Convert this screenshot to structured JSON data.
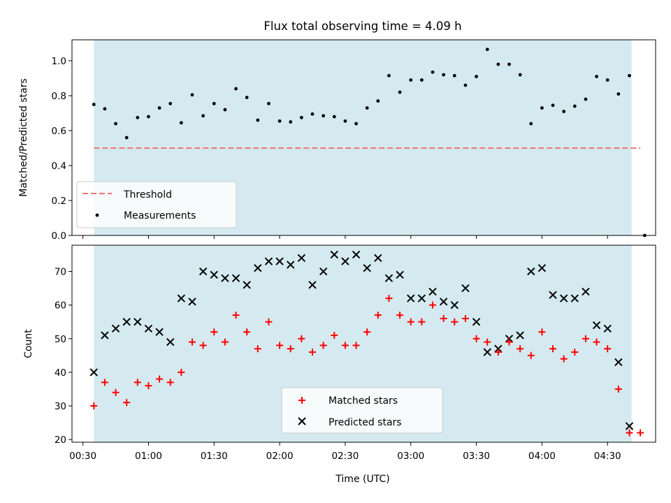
{
  "chart_data": {
    "title": "Flux total observing time = 4.09 h",
    "xlabel": "Time (UTC)",
    "xaxis": {
      "unit": "minutes after 00:00 UTC",
      "range": [
        "00:25",
        "04:52"
      ],
      "tick_labels": [
        "00:30",
        "01:00",
        "01:30",
        "02:00",
        "02:30",
        "03:00",
        "03:30",
        "04:00",
        "04:30"
      ]
    },
    "observing_window": {
      "start": "00:35",
      "end": "04:41",
      "color": "#d4eaf0"
    },
    "panels": [
      {
        "name": "ratio",
        "type": "scatter",
        "ylabel": "Matched/Predicted stars",
        "ylim": [
          0.0,
          1.12
        ],
        "y_ticks": [
          "0.0",
          "0.2",
          "0.4",
          "0.6",
          "0.8",
          "1.0"
        ],
        "legend": {
          "placement": "lower-left",
          "entries": [
            "Threshold",
            "Measurements"
          ]
        },
        "threshold": {
          "label": "Threshold",
          "value": 0.5,
          "color": "#f47575",
          "style": "dashed",
          "from": "00:35",
          "to": "04:45"
        },
        "series": [
          {
            "name": "Measurements",
            "marker": "dot",
            "color": "#000000",
            "points": [
              [
                "00:35",
                0.75
              ],
              [
                "00:40",
                0.725
              ],
              [
                "00:45",
                0.64
              ],
              [
                "00:50",
                0.56
              ],
              [
                "00:55",
                0.675
              ],
              [
                "01:00",
                0.68
              ],
              [
                "01:05",
                0.73
              ],
              [
                "01:10",
                0.755
              ],
              [
                "01:15",
                0.645
              ],
              [
                "01:20",
                0.805
              ],
              [
                "01:25",
                0.685
              ],
              [
                "01:30",
                0.755
              ],
              [
                "01:35",
                0.72
              ],
              [
                "01:40",
                0.84
              ],
              [
                "01:45",
                0.79
              ],
              [
                "01:50",
                0.66
              ],
              [
                "01:55",
                0.755
              ],
              [
                "02:00",
                0.655
              ],
              [
                "02:05",
                0.65
              ],
              [
                "02:10",
                0.675
              ],
              [
                "02:15",
                0.695
              ],
              [
                "02:20",
                0.685
              ],
              [
                "02:25",
                0.68
              ],
              [
                "02:30",
                0.655
              ],
              [
                "02:35",
                0.64
              ],
              [
                "02:40",
                0.73
              ],
              [
                "02:45",
                0.77
              ],
              [
                "02:50",
                0.915
              ],
              [
                "02:55",
                0.82
              ],
              [
                "03:00",
                0.89
              ],
              [
                "03:05",
                0.89
              ],
              [
                "03:10",
                0.935
              ],
              [
                "03:15",
                0.92
              ],
              [
                "03:20",
                0.915
              ],
              [
                "03:25",
                0.86
              ],
              [
                "03:30",
                0.91
              ],
              [
                "03:35",
                1.065
              ],
              [
                "03:40",
                0.98
              ],
              [
                "03:45",
                0.98
              ],
              [
                "03:50",
                0.92
              ],
              [
                "03:55",
                0.64
              ],
              [
                "04:00",
                0.73
              ],
              [
                "04:05",
                0.745
              ],
              [
                "04:10",
                0.71
              ],
              [
                "04:15",
                0.74
              ],
              [
                "04:20",
                0.78
              ],
              [
                "04:25",
                0.91
              ],
              [
                "04:30",
                0.89
              ],
              [
                "04:35",
                0.81
              ],
              [
                "04:40",
                0.915
              ],
              [
                "04:47",
                0.0
              ]
            ]
          }
        ]
      },
      {
        "name": "counts",
        "type": "scatter",
        "ylabel": "Count",
        "ylim": [
          19.2,
          77.8
        ],
        "y_ticks": [
          "20",
          "30",
          "40",
          "50",
          "60",
          "70"
        ],
        "legend": {
          "placement": "lower-center",
          "entries": [
            "Matched stars",
            "Predicted stars"
          ]
        },
        "series": [
          {
            "name": "Matched stars",
            "marker": "plus",
            "color": "#ff0000",
            "points": [
              [
                "00:35",
                30
              ],
              [
                "00:40",
                37
              ],
              [
                "00:45",
                34
              ],
              [
                "00:50",
                31
              ],
              [
                "00:55",
                37
              ],
              [
                "01:00",
                36
              ],
              [
                "01:05",
                38
              ],
              [
                "01:10",
                37
              ],
              [
                "01:15",
                40
              ],
              [
                "01:20",
                49
              ],
              [
                "01:25",
                48
              ],
              [
                "01:30",
                52
              ],
              [
                "01:35",
                49
              ],
              [
                "01:40",
                57
              ],
              [
                "01:45",
                52
              ],
              [
                "01:50",
                47
              ],
              [
                "01:55",
                55
              ],
              [
                "02:00",
                48
              ],
              [
                "02:05",
                47
              ],
              [
                "02:10",
                50
              ],
              [
                "02:15",
                46
              ],
              [
                "02:20",
                48
              ],
              [
                "02:25",
                51
              ],
              [
                "02:30",
                48
              ],
              [
                "02:35",
                48
              ],
              [
                "02:40",
                52
              ],
              [
                "02:45",
                57
              ],
              [
                "02:50",
                62
              ],
              [
                "02:55",
                57
              ],
              [
                "03:00",
                55
              ],
              [
                "03:05",
                55
              ],
              [
                "03:10",
                60
              ],
              [
                "03:15",
                56
              ],
              [
                "03:20",
                55
              ],
              [
                "03:25",
                56
              ],
              [
                "03:30",
                50
              ],
              [
                "03:35",
                49
              ],
              [
                "03:40",
                46
              ],
              [
                "03:45",
                49
              ],
              [
                "03:50",
                47
              ],
              [
                "03:55",
                45
              ],
              [
                "04:00",
                52
              ],
              [
                "04:05",
                47
              ],
              [
                "04:10",
                44
              ],
              [
                "04:15",
                46
              ],
              [
                "04:20",
                50
              ],
              [
                "04:25",
                49
              ],
              [
                "04:30",
                47
              ],
              [
                "04:35",
                35
              ],
              [
                "04:40",
                22
              ],
              [
                "04:45",
                22
              ]
            ]
          },
          {
            "name": "Predicted stars",
            "marker": "x",
            "color": "#000000",
            "points": [
              [
                "00:35",
                40
              ],
              [
                "00:40",
                51
              ],
              [
                "00:45",
                53
              ],
              [
                "00:50",
                55
              ],
              [
                "00:55",
                55
              ],
              [
                "01:00",
                53
              ],
              [
                "01:05",
                52
              ],
              [
                "01:10",
                49
              ],
              [
                "01:15",
                62
              ],
              [
                "01:20",
                61
              ],
              [
                "01:25",
                70
              ],
              [
                "01:30",
                69
              ],
              [
                "01:35",
                68
              ],
              [
                "01:40",
                68
              ],
              [
                "01:45",
                66
              ],
              [
                "01:50",
                71
              ],
              [
                "01:55",
                73
              ],
              [
                "02:00",
                73
              ],
              [
                "02:05",
                72
              ],
              [
                "02:10",
                74
              ],
              [
                "02:15",
                66
              ],
              [
                "02:20",
                70
              ],
              [
                "02:25",
                75
              ],
              [
                "02:30",
                73
              ],
              [
                "02:35",
                75
              ],
              [
                "02:40",
                71
              ],
              [
                "02:45",
                74
              ],
              [
                "02:50",
                68
              ],
              [
                "02:55",
                69
              ],
              [
                "03:00",
                62
              ],
              [
                "03:05",
                62
              ],
              [
                "03:10",
                64
              ],
              [
                "03:15",
                61
              ],
              [
                "03:20",
                60
              ],
              [
                "03:25",
                65
              ],
              [
                "03:30",
                55
              ],
              [
                "03:35",
                46
              ],
              [
                "03:40",
                47
              ],
              [
                "03:45",
                50
              ],
              [
                "03:50",
                51
              ],
              [
                "03:55",
                70
              ],
              [
                "04:00",
                71
              ],
              [
                "04:05",
                63
              ],
              [
                "04:10",
                62
              ],
              [
                "04:15",
                62
              ],
              [
                "04:20",
                64
              ],
              [
                "04:25",
                54
              ],
              [
                "04:30",
                53
              ],
              [
                "04:35",
                43
              ],
              [
                "04:40",
                24
              ]
            ]
          }
        ]
      }
    ]
  }
}
